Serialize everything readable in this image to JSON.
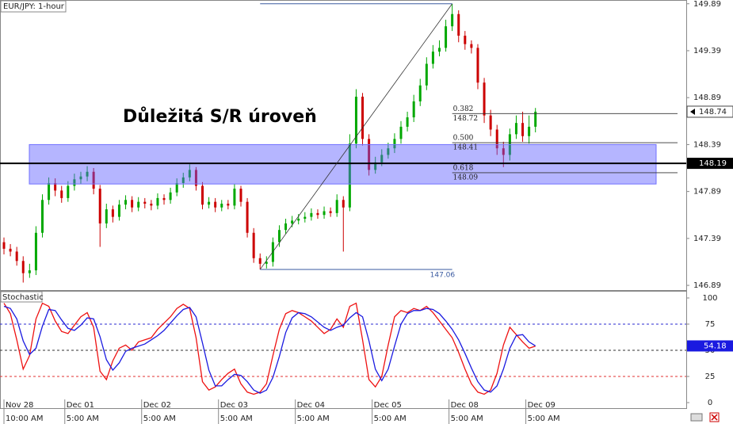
{
  "chart_data": [
    {
      "type": "candlestick",
      "title": "EUR/JPY: 1-hour",
      "annotation": "Důležitá S/R úroveň",
      "up_color": "#00a800",
      "down_color": "#cc0000",
      "ylim": [
        146.84,
        149.93
      ],
      "yticks": [
        149.89,
        149.39,
        148.89,
        148.39,
        147.89,
        147.39,
        146.89
      ],
      "xlim": [
        -1.24,
        213.1
      ],
      "sr_level": 148.19,
      "sr_zone": [
        147.97,
        148.39
      ],
      "fib": {
        "low": 147.06,
        "high": 149.89,
        "low_x": 80,
        "high_x": 140,
        "levels": [
          {
            "ratio": "0.382",
            "price": 148.72
          },
          {
            "ratio": "0.500",
            "price": 148.41
          },
          {
            "ratio": "0.618",
            "price": 148.09
          }
        ]
      },
      "x": [
        0,
        2,
        4,
        6,
        8,
        10,
        12,
        14,
        16,
        18,
        20,
        22,
        24,
        26,
        28,
        30,
        32,
        34,
        36,
        38,
        40,
        42,
        44,
        46,
        48,
        50,
        52,
        54,
        56,
        58,
        60,
        62,
        64,
        66,
        68,
        70,
        72,
        74,
        76,
        78,
        80,
        82,
        84,
        86,
        88,
        90,
        92,
        94,
        96,
        98,
        100,
        102,
        104,
        106,
        108,
        110,
        112,
        114,
        116,
        118,
        120,
        122,
        124,
        126,
        128,
        130,
        132,
        134,
        136,
        138,
        140,
        142,
        144,
        146,
        148,
        150,
        152,
        154,
        156,
        158,
        160,
        162,
        164,
        166
      ],
      "open": [
        147.35,
        147.28,
        147.25,
        147.15,
        147.02,
        147.05,
        147.45,
        147.8,
        147.98,
        147.9,
        147.82,
        147.95,
        148.02,
        148.05,
        148.1,
        147.92,
        147.55,
        147.7,
        147.62,
        147.75,
        147.8,
        147.72,
        147.78,
        147.76,
        147.74,
        147.82,
        147.8,
        147.88,
        147.98,
        148.04,
        148.12,
        147.95,
        147.75,
        147.78,
        147.72,
        147.76,
        147.74,
        147.92,
        147.78,
        147.45,
        147.18,
        147.12,
        147.14,
        147.35,
        147.48,
        147.55,
        147.58,
        147.6,
        147.62,
        147.66,
        147.64,
        147.68,
        147.66,
        147.8,
        147.72,
        148.4,
        148.9,
        148.45,
        148.12,
        148.2,
        148.28,
        148.35,
        148.45,
        148.58,
        148.68,
        148.85,
        149.02,
        149.25,
        149.38,
        149.42,
        149.65,
        149.78,
        149.55,
        149.46,
        149.42,
        149.05,
        148.7,
        148.55,
        148.35,
        148.28,
        148.5,
        148.62,
        148.48,
        148.58
      ],
      "high": [
        147.4,
        147.33,
        147.3,
        147.2,
        147.12,
        147.52,
        147.86,
        148.04,
        148.03,
        147.95,
        148.0,
        148.08,
        148.1,
        148.16,
        148.14,
        147.96,
        147.76,
        147.74,
        147.8,
        147.85,
        147.84,
        147.83,
        147.82,
        147.8,
        147.87,
        147.86,
        147.93,
        148.03,
        148.09,
        148.18,
        148.15,
        147.99,
        147.83,
        147.82,
        147.8,
        147.8,
        147.97,
        147.95,
        147.82,
        147.5,
        147.23,
        147.2,
        147.4,
        147.53,
        147.6,
        147.63,
        147.65,
        147.67,
        147.71,
        147.7,
        147.73,
        147.72,
        147.86,
        147.84,
        148.5,
        148.98,
        148.94,
        148.5,
        148.26,
        148.34,
        148.41,
        148.51,
        148.64,
        148.74,
        148.92,
        149.09,
        149.32,
        149.45,
        149.5,
        149.72,
        149.89,
        149.82,
        149.6,
        149.5,
        149.46,
        149.1,
        148.76,
        148.6,
        148.42,
        148.56,
        148.7,
        148.74,
        148.7,
        148.78
      ],
      "low": [
        147.22,
        147.2,
        147.1,
        146.92,
        146.97,
        147.0,
        147.4,
        147.75,
        147.84,
        147.77,
        147.78,
        147.9,
        147.97,
        148.0,
        147.86,
        147.3,
        147.5,
        147.56,
        147.58,
        147.7,
        147.67,
        147.68,
        147.71,
        147.69,
        147.7,
        147.75,
        147.76,
        147.84,
        147.93,
        148.0,
        147.9,
        147.7,
        147.71,
        147.67,
        147.68,
        147.7,
        147.7,
        147.73,
        147.4,
        147.13,
        147.06,
        147.07,
        147.09,
        147.3,
        147.44,
        147.51,
        147.54,
        147.56,
        147.58,
        147.6,
        147.6,
        147.62,
        147.62,
        147.25,
        147.68,
        148.35,
        148.38,
        148.06,
        148.08,
        148.16,
        148.24,
        148.3,
        148.4,
        148.53,
        148.63,
        148.8,
        148.97,
        149.2,
        149.33,
        149.38,
        149.6,
        149.48,
        149.4,
        149.36,
        148.98,
        148.62,
        148.48,
        148.28,
        148.15,
        148.22,
        148.45,
        148.42,
        148.4,
        148.52
      ],
      "close": [
        147.28,
        147.25,
        147.15,
        147.02,
        147.05,
        147.45,
        147.8,
        147.98,
        147.9,
        147.82,
        147.95,
        148.02,
        148.05,
        148.1,
        147.92,
        147.55,
        147.7,
        147.62,
        147.75,
        147.8,
        147.72,
        147.78,
        147.76,
        147.74,
        147.82,
        147.8,
        147.88,
        147.98,
        148.04,
        148.12,
        147.95,
        147.75,
        147.78,
        147.72,
        147.76,
        147.74,
        147.92,
        147.78,
        147.45,
        147.18,
        147.12,
        147.14,
        147.35,
        147.48,
        147.55,
        147.58,
        147.6,
        147.62,
        147.66,
        147.64,
        147.68,
        147.66,
        147.8,
        147.72,
        148.4,
        148.9,
        148.45,
        148.12,
        148.2,
        148.28,
        148.35,
        148.45,
        148.58,
        148.68,
        148.85,
        149.02,
        149.25,
        149.38,
        149.42,
        149.65,
        149.78,
        149.55,
        149.46,
        149.42,
        149.05,
        148.7,
        148.55,
        148.35,
        148.28,
        148.5,
        148.62,
        148.48,
        148.58,
        148.74
      ]
    },
    {
      "type": "line",
      "title": "Stochastic",
      "ylim": [
        -5.3,
        106.8
      ],
      "yticks": [
        100,
        75,
        50,
        25,
        0
      ],
      "levels": [
        75,
        50,
        25
      ],
      "level_colors": [
        "#2a2ad0",
        "#333333",
        "#e03030"
      ],
      "xlim": [
        -1.24,
        213.1
      ],
      "xticks": [
        {
          "value": 0,
          "label": "Nov 28"
        },
        {
          "value": 19,
          "label": "Dec 01"
        },
        {
          "value": 43,
          "label": "Dec 02"
        },
        {
          "value": 67,
          "label": "Dec 03"
        },
        {
          "value": 91,
          "label": "Dec 04"
        },
        {
          "value": 115,
          "label": "Dec 05"
        },
        {
          "value": 139,
          "label": "Dec 08"
        },
        {
          "value": 163,
          "label": "Dec 09"
        }
      ],
      "xtick_times": [
        "10:00 AM",
        "5:00 AM",
        "5:00 AM",
        "5:00 AM",
        "5:00 AM",
        "5:00 AM",
        "5:00 AM",
        "5:00 AM"
      ],
      "x": [
        0,
        2,
        4,
        6,
        8,
        10,
        12,
        14,
        16,
        18,
        20,
        22,
        24,
        26,
        28,
        30,
        32,
        34,
        36,
        38,
        40,
        42,
        44,
        46,
        48,
        50,
        52,
        54,
        56,
        58,
        60,
        62,
        64,
        66,
        68,
        70,
        72,
        74,
        76,
        78,
        80,
        82,
        84,
        86,
        88,
        90,
        92,
        94,
        96,
        98,
        100,
        102,
        104,
        106,
        108,
        110,
        112,
        114,
        116,
        118,
        120,
        122,
        124,
        126,
        128,
        130,
        132,
        134,
        136,
        138,
        140,
        142,
        144,
        146,
        148,
        150,
        152,
        154,
        156,
        158,
        160,
        162,
        164,
        166
      ],
      "series": [
        {
          "color": "#ee1111",
          "values": [
            95,
            85,
            60,
            32,
            45,
            80,
            95,
            92,
            78,
            68,
            66,
            74,
            82,
            86,
            72,
            30,
            22,
            40,
            52,
            55,
            50,
            58,
            60,
            62,
            70,
            76,
            82,
            90,
            94,
            90,
            62,
            20,
            12,
            15,
            22,
            28,
            32,
            18,
            10,
            8,
            10,
            18,
            45,
            70,
            85,
            88,
            86,
            82,
            78,
            72,
            66,
            70,
            80,
            72,
            92,
            95,
            60,
            22,
            15,
            25,
            55,
            82,
            88,
            86,
            90,
            88,
            92,
            86,
            78,
            70,
            62,
            48,
            32,
            18,
            10,
            8,
            12,
            28,
            55,
            72,
            65,
            58,
            52,
            54
          ]
        },
        {
          "color": "#1a1ae0",
          "values": [
            92,
            90,
            80,
            59,
            46,
            52,
            73,
            89,
            88,
            79,
            71,
            69,
            74,
            81,
            80,
            63,
            41,
            31,
            38,
            49,
            52,
            54,
            56,
            60,
            64,
            69,
            76,
            83,
            89,
            91,
            82,
            57,
            31,
            16,
            16,
            22,
            27,
            26,
            20,
            12,
            9,
            12,
            24,
            44,
            67,
            81,
            86,
            85,
            82,
            77,
            72,
            69,
            72,
            74,
            81,
            86,
            82,
            59,
            32,
            21,
            32,
            54,
            75,
            85,
            88,
            88,
            90,
            89,
            85,
            78,
            70,
            60,
            47,
            33,
            20,
            12,
            10,
            16,
            32,
            52,
            64,
            65,
            58,
            54.18
          ]
        }
      ]
    }
  ]
}
